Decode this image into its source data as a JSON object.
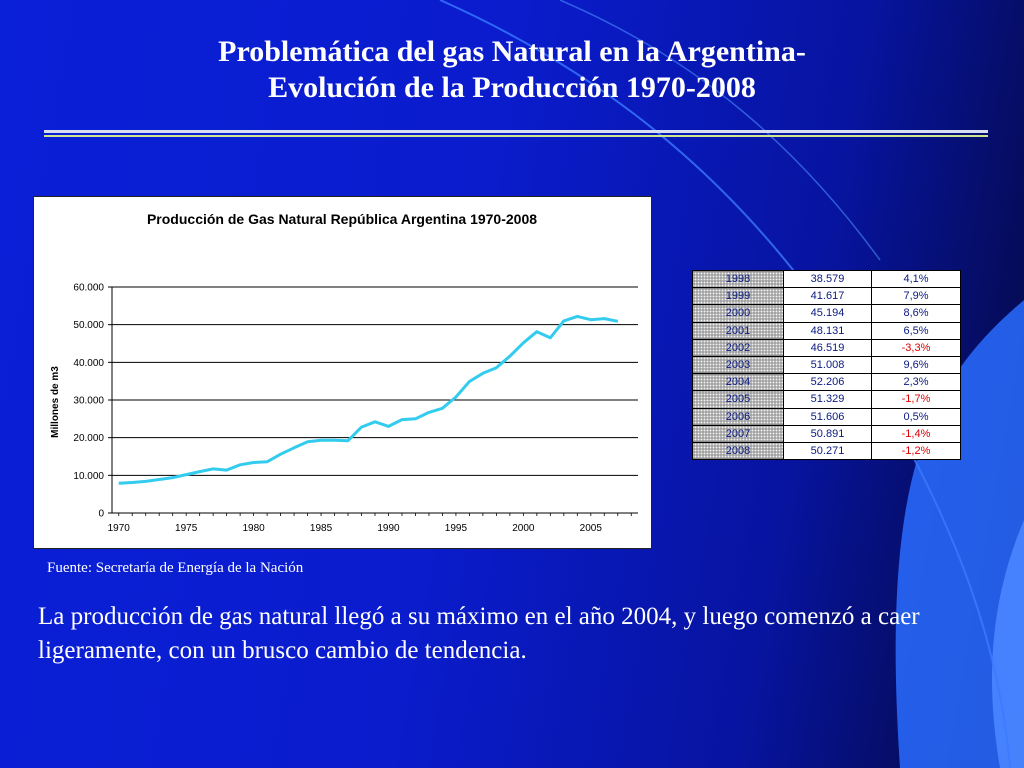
{
  "slide": {
    "title_line1": "Problemática del gas Natural en la Argentina-",
    "title_line2": "Evolución de la Producción 1970-2008",
    "source": "Fuente: Secretaría de Energía de la Nación",
    "body": "La producción de gas natural llegó a su máximo en el año 2004, y luego comenzó a caer ligeramente, con un brusco cambio de tendencia."
  },
  "chart_data": {
    "type": "line",
    "title": "Producción de Gas Natural República Argentina 1970-2008",
    "xlabel": "",
    "ylabel": "Millones de m3",
    "x_ticks": [
      "1970",
      "1975",
      "1980",
      "1985",
      "1990",
      "1995",
      "2000",
      "2005"
    ],
    "y_ticks": [
      "0",
      "10.000",
      "20.000",
      "30.000",
      "40.000",
      "50.000",
      "60.000"
    ],
    "xlim": [
      1969.5,
      2008.5
    ],
    "ylim": [
      0,
      60000
    ],
    "grid": true,
    "line_color": "#33ccee",
    "series": [
      {
        "x": [
          1970,
          1971,
          1972,
          1973,
          1974,
          1975,
          1976,
          1977,
          1978,
          1979,
          1980,
          1981,
          1982,
          1983,
          1984,
          1985,
          1986,
          1987,
          1988,
          1989,
          1990,
          1991,
          1992,
          1993,
          1994,
          1995,
          1996,
          1997,
          1998,
          1999,
          2000,
          2001,
          2002,
          2003,
          2004,
          2005,
          2006,
          2007
        ],
        "values": [
          7900,
          8100,
          8400,
          8900,
          9400,
          10200,
          11000,
          11700,
          11400,
          12800,
          13400,
          13600,
          15600,
          17300,
          18900,
          19300,
          19300,
          19200,
          22800,
          24200,
          23000,
          24800,
          25000,
          26700,
          27800,
          30800,
          34900,
          37100,
          38579,
          41617,
          45194,
          48131,
          46519,
          51008,
          52206,
          51329,
          51606,
          50891
        ]
      }
    ]
  },
  "table": {
    "rows": [
      {
        "year": "1998",
        "prod": "38.579",
        "var": "4,1%",
        "neg": false
      },
      {
        "year": "1999",
        "prod": "41.617",
        "var": "7,9%",
        "neg": false
      },
      {
        "year": "2000",
        "prod": "45.194",
        "var": "8,6%",
        "neg": false
      },
      {
        "year": "2001",
        "prod": "48.131",
        "var": "6,5%",
        "neg": false
      },
      {
        "year": "2002",
        "prod": "46.519",
        "var": "-3,3%",
        "neg": true
      },
      {
        "year": "2003",
        "prod": "51.008",
        "var": "9,6%",
        "neg": false
      },
      {
        "year": "2004",
        "prod": "52.206",
        "var": "2,3%",
        "neg": false
      },
      {
        "year": "2005",
        "prod": "51.329",
        "var": "-1,7%",
        "neg": true
      },
      {
        "year": "2006",
        "prod": "51.606",
        "var": "0,5%",
        "neg": false
      },
      {
        "year": "2007",
        "prod": "50.891",
        "var": "-1,4%",
        "neg": true
      },
      {
        "year": "2008",
        "prod": "50.271",
        "var": "-1,2%",
        "neg": true
      }
    ]
  },
  "colors": {
    "accent_light": "#3a8cff",
    "accent_bright": "#2f7bff",
    "negative": "#e00000"
  }
}
